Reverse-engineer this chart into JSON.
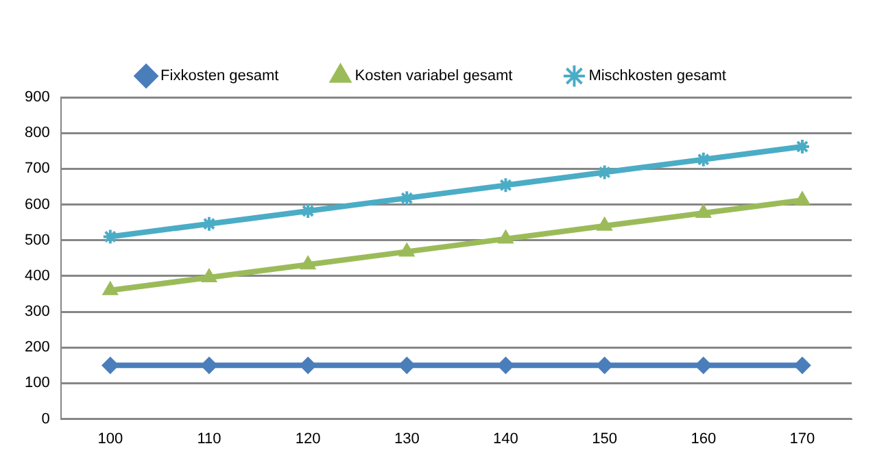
{
  "chart_data": {
    "type": "line",
    "categories": [
      "100",
      "110",
      "120",
      "130",
      "140",
      "150",
      "160",
      "170"
    ],
    "series": [
      {
        "name": "Fixkosten gesamt",
        "color": "#4a7ebb",
        "marker": "diamond",
        "values": [
          150,
          150,
          150,
          150,
          150,
          150,
          150,
          150
        ]
      },
      {
        "name": "Kosten variabel gesamt",
        "color": "#9bbb59",
        "marker": "triangle",
        "values": [
          360,
          396,
          432,
          468,
          504,
          540,
          576,
          612
        ]
      },
      {
        "name": "Mischkosten gesamt",
        "color": "#4bacc6",
        "marker": "cross",
        "values": [
          510,
          546,
          582,
          618,
          654,
          690,
          726,
          762
        ]
      }
    ],
    "ylim": [
      0,
      900
    ],
    "yticks": [
      0,
      100,
      200,
      300,
      400,
      500,
      600,
      700,
      800,
      900
    ],
    "grid": "y",
    "legend": "top"
  }
}
